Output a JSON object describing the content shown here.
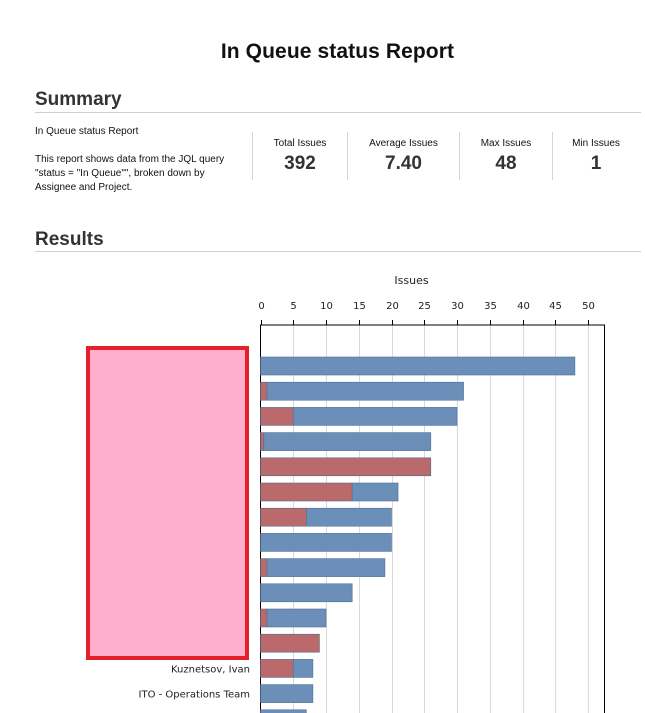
{
  "header": {
    "title": "In Queue status Report"
  },
  "summary": {
    "heading": "Summary",
    "report_name": "In Queue status Report",
    "description": "This report shows data from the JQL query \"status = \"In Queue\"\", broken down by Assignee and Project.",
    "stats": [
      {
        "label": "Total Issues",
        "value": "392"
      },
      {
        "label": "Average Issues",
        "value": "7.40"
      },
      {
        "label": "Max Issues",
        "value": "48"
      },
      {
        "label": "Min Issues",
        "value": "1"
      }
    ]
  },
  "results": {
    "heading": "Results"
  },
  "colors": {
    "series_blue": "#6b8fb9",
    "series_red": "#ba6a6b",
    "grid": "#d9d9d9",
    "redaction_fill": "#ffaecc",
    "redaction_border": "#e5202b"
  },
  "chart_data": {
    "type": "bar",
    "orientation": "horizontal",
    "stacked": true,
    "xlabel": "Issues",
    "ylabel": "",
    "xlim": [
      0,
      52
    ],
    "x_ticks": [
      0,
      5,
      10,
      15,
      20,
      25,
      30,
      35,
      40,
      45,
      50
    ],
    "grid": true,
    "categories": [
      "",
      "",
      "",
      "",
      "",
      "",
      "",
      "",
      "",
      "",
      "",
      "",
      "Kuznetsov, Ivan",
      "ITO - Operations Team",
      ""
    ],
    "series": [
      {
        "color": "#ba6a6b",
        "values": [
          0,
          1,
          5,
          0.5,
          26,
          14,
          7,
          0,
          1,
          0,
          1,
          9,
          5,
          0,
          0
        ]
      },
      {
        "color": "#6b8fb9",
        "values": [
          48,
          30,
          25,
          25.5,
          0,
          7,
          13,
          20,
          18,
          14,
          9,
          0,
          3,
          8,
          7
        ]
      }
    ]
  }
}
